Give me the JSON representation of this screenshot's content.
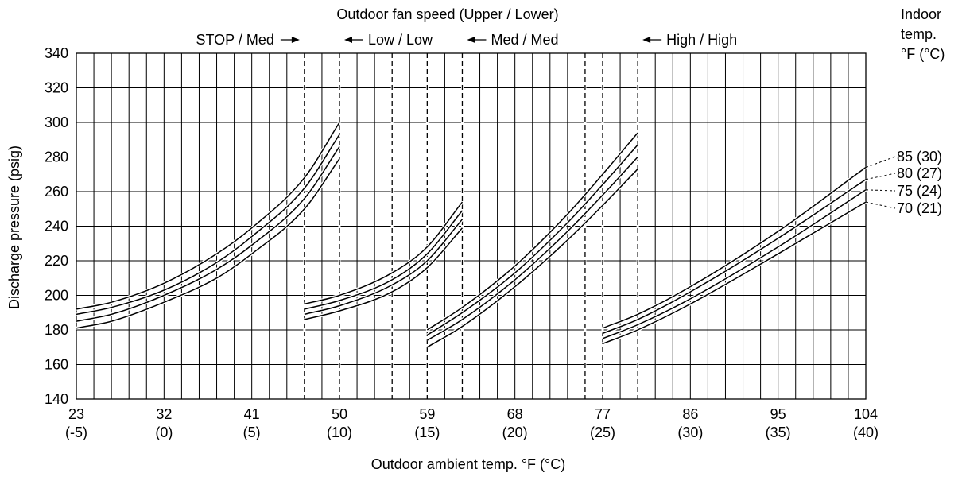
{
  "chart_data": {
    "type": "line",
    "xlabel": "Outdoor ambient temp. °F (°C)",
    "ylabel": "Discharge pressure (psig)",
    "xlim": [
      23,
      104
    ],
    "ylim": [
      140,
      340
    ],
    "grid": true,
    "x_ticks": [
      {
        "value": 23,
        "f": "23",
        "c": "(-5)"
      },
      {
        "value": 32,
        "f": "32",
        "c": "(0)"
      },
      {
        "value": 41,
        "f": "41",
        "c": "(5)"
      },
      {
        "value": 50,
        "f": "50",
        "c": "(10)"
      },
      {
        "value": 59,
        "f": "59",
        "c": "(15)"
      },
      {
        "value": 68,
        "f": "68",
        "c": "(20)"
      },
      {
        "value": 77,
        "f": "77",
        "c": "(25)"
      },
      {
        "value": 86,
        "f": "86",
        "c": "(30)"
      },
      {
        "value": 95,
        "f": "95",
        "c": "(35)"
      },
      {
        "value": 104,
        "f": "104",
        "c": "(40)"
      }
    ],
    "y_ticks": [
      140,
      160,
      180,
      200,
      220,
      240,
      260,
      280,
      300,
      320,
      340
    ],
    "fan_speed_title": "Outdoor fan speed (Upper / Lower)",
    "fan_speed_labels": [
      "STOP / Med",
      "Low / Low",
      "Med / Med",
      "High / High"
    ],
    "mode_boundaries": [
      46.4,
      50,
      55.4,
      59,
      62.6,
      75.2,
      77,
      80.6
    ],
    "legend_title": [
      "Indoor",
      "temp.",
      "°F (°C)"
    ],
    "series": [
      {
        "name": "85 (30)",
        "segments": [
          {
            "x": [
              23,
              26.6,
              32,
              37.4,
              41,
              46.4,
              50
            ],
            "y": [
              192,
              196,
              207,
              224,
              239,
              268,
              300
            ]
          },
          {
            "x": [
              46.4,
              50,
              55.4,
              59,
              62.6
            ],
            "y": [
              195,
              200,
              213,
              228,
              254
            ]
          },
          {
            "x": [
              59,
              62.6,
              68,
              73.4,
              77,
              80.6
            ],
            "y": [
              180,
              193,
              217,
              247,
              270,
              294
            ]
          },
          {
            "x": [
              77,
              80.6,
              86,
              95,
              104
            ],
            "y": [
              181,
              189,
              205,
              237,
              274
            ]
          }
        ]
      },
      {
        "name": "80 (27)",
        "segments": [
          {
            "x": [
              23,
              26.6,
              32,
              37.4,
              41,
              46.4,
              50
            ],
            "y": [
              189,
              193,
              203,
              219,
              234,
              262,
              293
            ]
          },
          {
            "x": [
              46.4,
              50,
              55.4,
              59,
              62.6
            ],
            "y": [
              192,
              197,
              209,
              224,
              249
            ]
          },
          {
            "x": [
              59,
              62.6,
              68,
              73.4,
              77,
              80.6
            ],
            "y": [
              177,
              190,
              213,
              242,
              264,
              287
            ]
          },
          {
            "x": [
              77,
              80.6,
              86,
              95,
              104
            ],
            "y": [
              178,
              186,
              202,
              233,
              267
            ]
          }
        ]
      },
      {
        "name": "75 (24)",
        "segments": [
          {
            "x": [
              23,
              26.6,
              32,
              37.4,
              41,
              46.4,
              50
            ],
            "y": [
              185,
              189,
              200,
              215,
              229,
              256,
              286
            ]
          },
          {
            "x": [
              46.4,
              50,
              55.4,
              59,
              62.6
            ],
            "y": [
              189,
              194,
              206,
              220,
              244
            ]
          },
          {
            "x": [
              59,
              62.6,
              68,
              73.4,
              77,
              80.6
            ],
            "y": [
              174,
              186,
              209,
              237,
              258,
              280
            ]
          },
          {
            "x": [
              77,
              80.6,
              86,
              95,
              104
            ],
            "y": [
              175,
              183,
              198,
              228,
              261
            ]
          }
        ]
      },
      {
        "name": "70 (21)",
        "segments": [
          {
            "x": [
              23,
              26.6,
              32,
              37.4,
              41,
              46.4,
              50
            ],
            "y": [
              181,
              185,
              196,
              210,
              224,
              250,
              279
            ]
          },
          {
            "x": [
              46.4,
              50,
              55.4,
              59,
              62.6
            ],
            "y": [
              186,
              191,
              202,
              216,
              239
            ]
          },
          {
            "x": [
              59,
              62.6,
              68,
              73.4,
              77,
              80.6
            ],
            "y": [
              170,
              182,
              205,
              232,
              252,
              273
            ]
          },
          {
            "x": [
              77,
              80.6,
              86,
              95,
              104
            ],
            "y": [
              172,
              180,
              195,
              224,
              254
            ]
          }
        ]
      }
    ]
  }
}
